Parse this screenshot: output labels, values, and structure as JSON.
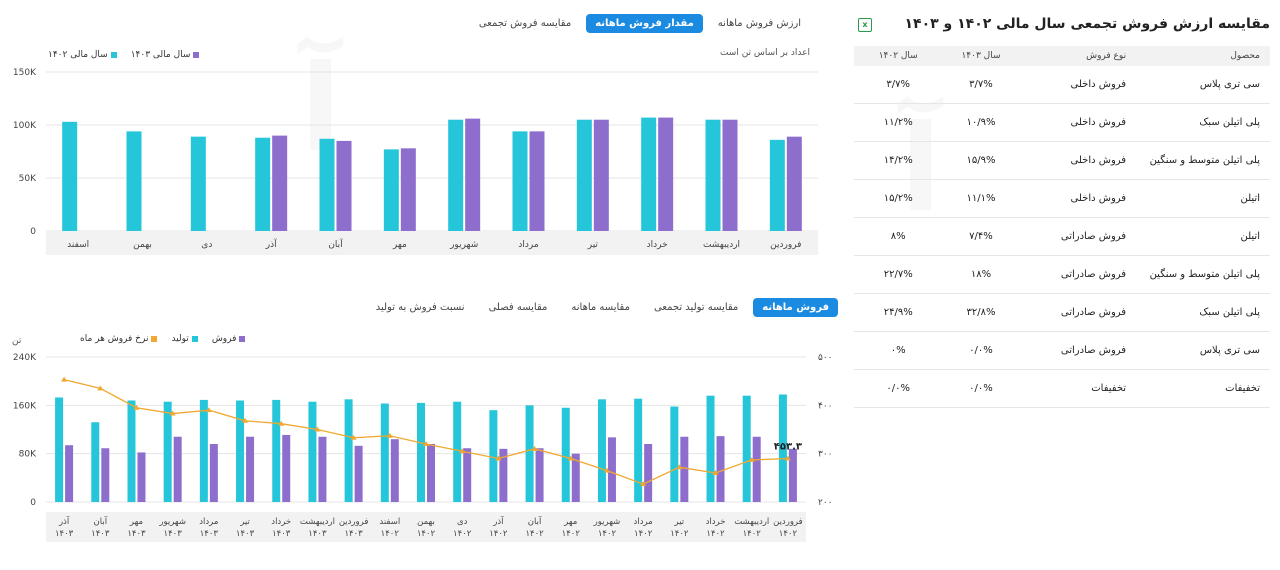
{
  "top": {
    "tabs": [
      {
        "label": "ارزش فروش ماهانه",
        "active": false
      },
      {
        "label": "مقدار فروش ماهانه",
        "active": true
      },
      {
        "label": "مقایسه فروش تجمعی",
        "active": false
      }
    ],
    "legend": [
      {
        "label": "سال مالی ۱۴۰۳",
        "color": "#8e6ecc"
      },
      {
        "label": "سال مالی ۱۴۰۲",
        "color": "#26c6da"
      }
    ],
    "note": "اعداد بر اساس تن است"
  },
  "bottom": {
    "tabs": [
      {
        "label": "فروش ماهانه",
        "active": true
      },
      {
        "label": "مقایسه تولید تجمعی",
        "active": false
      },
      {
        "label": "مقایسه ماهانه",
        "active": false
      },
      {
        "label": "مقایسه فصلی",
        "active": false
      },
      {
        "label": "نسبت فروش به تولید",
        "active": false
      }
    ],
    "legend": [
      {
        "label": "فروش",
        "color": "#8e6ecc"
      },
      {
        "label": "تولید",
        "color": "#26c6da"
      },
      {
        "label": "نرخ فروش هر ماه",
        "color": "#f0a830"
      }
    ],
    "left_unit": "تن"
  },
  "table": {
    "title": "مقایسه ارزش فروش تجمعی سال مالی ۱۴۰۲ و ۱۴۰۳",
    "headers": [
      "محصول",
      "نوع فروش",
      "سال ۱۴۰۳",
      "سال ۱۴۰۲"
    ],
    "rows": [
      [
        "سی تری پلاس",
        "فروش داخلی",
        "۳/۷%",
        "۳/۷%"
      ],
      [
        "پلی اتیلن سبک",
        "فروش داخلی",
        "۱۰/۹%",
        "۱۱/۲%"
      ],
      [
        "پلی اتیلن متوسط و سنگین",
        "فروش داخلی",
        "۱۵/۹%",
        "۱۴/۲%"
      ],
      [
        "اتیلن",
        "فروش داخلی",
        "۱۱/۱%",
        "۱۵/۲%"
      ],
      [
        "اتیلن",
        "فروش صادراتی",
        "۷/۴%",
        "۸%"
      ],
      [
        "پلی اتیلن متوسط و سنگین",
        "فروش صادراتی",
        "۱۸%",
        "۲۲/۷%"
      ],
      [
        "پلی اتیلن سبک",
        "فروش صادراتی",
        "۳۲/۸%",
        "۲۴/۹%"
      ],
      [
        "سی تری پلاس",
        "فروش صادراتی",
        "۰/۰%",
        "۰%"
      ],
      [
        "تخفیفات",
        "تخفیفات",
        "۰/۰%",
        "۰/۰%"
      ]
    ]
  },
  "chart_data": [
    {
      "type": "bar",
      "categories": [
        "فروردین",
        "اردیبهشت",
        "خرداد",
        "تیر",
        "مرداد",
        "شهریور",
        "مهر",
        "آبان",
        "آذر",
        "دی",
        "بهمن",
        "اسفند"
      ],
      "series": [
        {
          "name": "سال مالی ۱۴۰۲",
          "color": "#26c6da",
          "values": [
            86,
            105,
            107,
            105,
            94,
            105,
            77,
            87,
            88,
            89,
            94,
            103
          ]
        },
        {
          "name": "سال مالی ۱۴۰۳",
          "color": "#8e6ecc",
          "values": [
            89,
            105,
            107,
            105,
            94,
            106,
            78,
            85,
            90,
            null,
            null,
            null
          ]
        }
      ],
      "ylim": [
        0,
        150
      ],
      "yticks": [
        "0",
        "50K",
        "100K",
        "150K"
      ],
      "ytick_values": [
        0,
        50,
        100,
        150
      ]
    },
    {
      "type": "bar",
      "categories": [
        "فروردین ۱۴۰۲",
        "اردیبهشت ۱۴۰۲",
        "خرداد ۱۴۰۲",
        "تیر ۱۴۰۲",
        "مرداد ۱۴۰۲",
        "شهریور ۱۴۰۲",
        "مهر ۱۴۰۲",
        "آبان ۱۴۰۲",
        "آذر ۱۴۰۲",
        "دی ۱۴۰۲",
        "بهمن ۱۴۰۲",
        "اسفند ۱۴۰۲",
        "فروردین ۱۴۰۳",
        "اردیبهشت ۱۴۰۳",
        "خرداد ۱۴۰۳",
        "تیر ۱۴۰۳",
        "مرداد ۱۴۰۳",
        "شهریور ۱۴۰۳",
        "مهر ۱۴۰۳",
        "آبان ۱۴۰۳",
        "آذر ۱۴۰۳"
      ],
      "category_lines": [
        [
          "فروردین",
          "۱۴۰۲"
        ],
        [
          "اردیبهشت",
          "۱۴۰۲"
        ],
        [
          "خرداد",
          "۱۴۰۲"
        ],
        [
          "تیر",
          "۱۴۰۲"
        ],
        [
          "مرداد",
          "۱۴۰۲"
        ],
        [
          "شهریور",
          "۱۴۰۲"
        ],
        [
          "مهر",
          "۱۴۰۲"
        ],
        [
          "آبان",
          "۱۴۰۲"
        ],
        [
          "آذر",
          "۱۴۰۲"
        ],
        [
          "دی",
          "۱۴۰۲"
        ],
        [
          "بهمن",
          "۱۴۰۲"
        ],
        [
          "اسفند",
          "۱۴۰۲"
        ],
        [
          "فروردین",
          "۱۴۰۳"
        ],
        [
          "اردیبهشت",
          "۱۴۰۳"
        ],
        [
          "خرداد",
          "۱۴۰۳"
        ],
        [
          "تیر",
          "۱۴۰۳"
        ],
        [
          "مرداد",
          "۱۴۰۳"
        ],
        [
          "شهریور",
          "۱۴۰۳"
        ],
        [
          "مهر",
          "۱۴۰۳"
        ],
        [
          "آبان",
          "۱۴۰۳"
        ],
        [
          "آذر",
          "۱۴۰۳"
        ]
      ],
      "series": [
        {
          "name": "تولید",
          "color": "#26c6da",
          "values": [
            178,
            176,
            176,
            158,
            171,
            170,
            156,
            160,
            152,
            166,
            164,
            163,
            170,
            166,
            169,
            168,
            169,
            166,
            168,
            132,
            173
          ]
        },
        {
          "name": "فروش",
          "color": "#8e6ecc",
          "values": [
            88,
            108,
            109,
            108,
            96,
            107,
            80,
            89,
            88,
            89,
            96,
            104,
            93,
            108,
            111,
            108,
            96,
            108,
            82,
            89,
            94
          ]
        },
        {
          "name": "نرخ فروش هر ماه",
          "color": "#f0a830",
          "axis": "right",
          "values": [
            290,
            287,
            260,
            272,
            237,
            265,
            290,
            310,
            290,
            305,
            320,
            337,
            333,
            350,
            362,
            368,
            390,
            383,
            395,
            435,
            453.3
          ]
        }
      ],
      "ylim": [
        0,
        240
      ],
      "yticks": [
        "0",
        "80K",
        "160K",
        "240K"
      ],
      "ytick_values": [
        0,
        80,
        160,
        240
      ],
      "y2lim": [
        200,
        500
      ],
      "y2ticks": [
        "۲۰۰",
        "۳۰۰",
        "۴۰۰",
        "۵۰۰"
      ],
      "y2tick_values": [
        200,
        300,
        400,
        500
      ],
      "annotation": "۴۵۳.۳"
    }
  ]
}
